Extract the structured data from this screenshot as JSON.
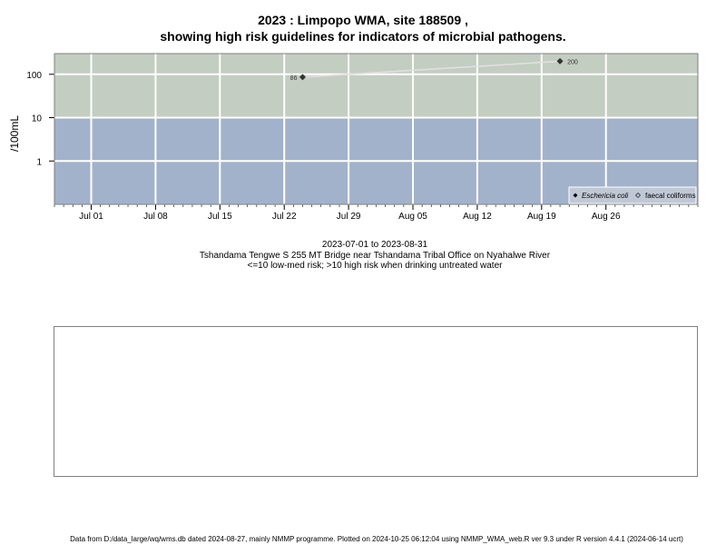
{
  "title_line1": "2023 : Limpopo WMA, site 188509 ,",
  "title_line2": "showing high risk guidelines for indicators of microbial pathogens.",
  "caption": {
    "date_range": "2023-07-01 to 2023-08-31",
    "site_description": "Tshandama Tengwe S 255 MT Bridge near Tshandama Tribal Office on Nyahalwe River",
    "risk_note": "<=10 low-med risk; >10 high risk when drinking untreated water"
  },
  "footer": "Data from D:/data_large/wq/wms.db dated 2024-08-27, mainly NMMP programme. Plotted on 2024-10-25 06:12:04 using NMMP_WMA_web.R ver 9.3 under R version 4.4.1 (2024-06-14 ucrt)",
  "colors": {
    "high_risk_band": "#c3cdc1",
    "low_med_band": "#a2b2ca",
    "grid": "#ffffff",
    "trend_line": "#e0e0e0",
    "point": "#333333"
  },
  "chart_data": {
    "type": "scatter",
    "ylabel": "/100mL",
    "y_scale": "log10",
    "ylim": [
      0.1,
      300
    ],
    "xlim": [
      "2023-06-27",
      "2023-09-05"
    ],
    "x_ticks": [
      "2023-07-01",
      "2023-07-08",
      "2023-07-15",
      "2023-07-22",
      "2023-07-29",
      "2023-08-05",
      "2023-08-12",
      "2023-08-19",
      "2023-08-26"
    ],
    "x_tick_labels": [
      "Jul 01",
      "Jul 08",
      "Jul 15",
      "Jul 22",
      "Jul 29",
      "Aug 05",
      "Aug 12",
      "Aug 19",
      "Aug 26"
    ],
    "y_ticks": [
      1,
      10,
      100
    ],
    "y_tick_labels": [
      "1",
      "10",
      "100"
    ],
    "threshold": 10,
    "grid": true,
    "legend_position": "bottom-right",
    "legend": [
      {
        "label": "Eschericia coli",
        "marker": "filled-diamond"
      },
      {
        "label": "faecal coliforms",
        "marker": "open-diamond"
      }
    ],
    "series": [
      {
        "name": "Eschericia coli",
        "points": [
          {
            "x": "2023-07-24",
            "y": 86,
            "label": "86"
          },
          {
            "x": "2023-08-21",
            "y": 200,
            "label": "200"
          }
        ]
      }
    ]
  }
}
